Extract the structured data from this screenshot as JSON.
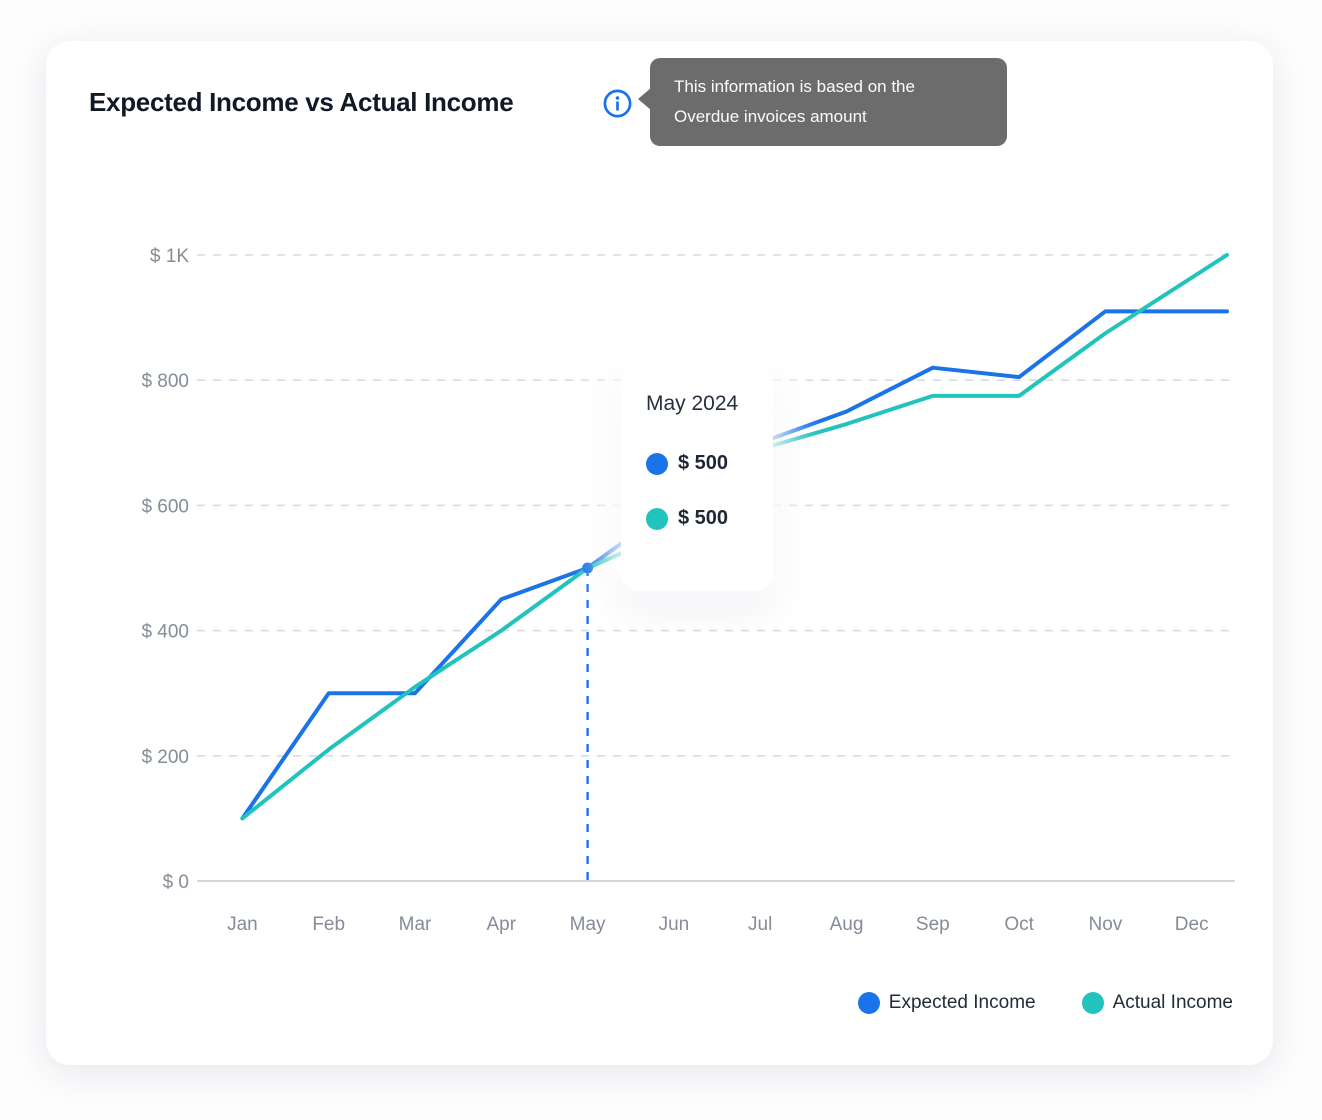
{
  "header": {
    "title": "Expected Income vs Actual Income",
    "info_tooltip": {
      "line1": "This information is based on the",
      "line2": "Overdue invoices amount"
    }
  },
  "colors": {
    "expected": "#1a73e8",
    "actual": "#21c3bd",
    "grid": "#d7dade",
    "axis": "#c6c9d0",
    "tick_text": "#858c98",
    "hover_line": "#1a73e8"
  },
  "chart_data": {
    "type": "line",
    "title": "Expected Income vs Actual Income",
    "categories": [
      "Jan",
      "Feb",
      "Mar",
      "Apr",
      "May",
      "Jun",
      "Jul",
      "Aug",
      "Sep",
      "Oct",
      "Nov",
      "Dec"
    ],
    "series": [
      {
        "name": "Expected Income",
        "color": "#1a73e8",
        "values": [
          100,
          300,
          300,
          450,
          500,
          600,
          700,
          750,
          820,
          805,
          910,
          910
        ]
      },
      {
        "name": "Actual Income",
        "color": "#21c3bd",
        "values": [
          100,
          210,
          310,
          400,
          500,
          560,
          690,
          730,
          775,
          775,
          875,
          1000
        ]
      }
    ],
    "yticks": [
      {
        "value": 0,
        "label": "$ 0"
      },
      {
        "value": 200,
        "label": "$ 200"
      },
      {
        "value": 400,
        "label": "$ 400"
      },
      {
        "value": 600,
        "label": "$ 600"
      },
      {
        "value": 800,
        "label": "$ 800"
      },
      {
        "value": 1000,
        "label": "$ 1K"
      }
    ],
    "ylim": [
      0,
      1000
    ],
    "grid": "horizontal-dashed",
    "legend_position": "bottom-right"
  },
  "hover_tooltip": {
    "title": "May 2024",
    "month_index": 4,
    "rows": [
      {
        "series": "Expected Income",
        "color": "#1a73e8",
        "value_label": "$ 500"
      },
      {
        "series": "Actual Income",
        "color": "#21c3bd",
        "value_label": "$ 500"
      }
    ]
  }
}
